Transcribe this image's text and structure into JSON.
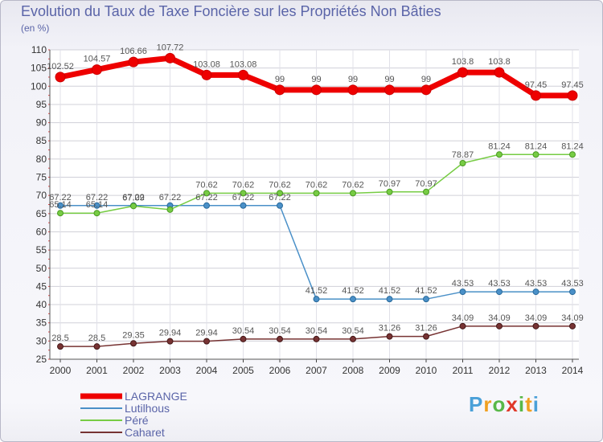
{
  "chart_data": {
    "type": "line",
    "title": "Evolution du Taux de Taxe Foncière sur les Propriétés Non Bâties",
    "ylabel": "(en %)",
    "ylim": [
      25,
      110
    ],
    "yticks": [
      "25",
      "30",
      "35",
      "40",
      "45",
      "50",
      "55",
      "60",
      "65",
      "70",
      "75",
      "80",
      "85",
      "90",
      "95",
      "100",
      "105",
      "110"
    ],
    "categories": [
      "2000",
      "2001",
      "2002",
      "2003",
      "2004",
      "2005",
      "2006",
      "2007",
      "2008",
      "2009",
      "2010",
      "2011",
      "2012",
      "2013",
      "2014"
    ],
    "series": [
      {
        "name": "LAGRANGE",
        "color": "#ee0000",
        "values": [
          102.52,
          104.57,
          106.66,
          107.72,
          103.08,
          103.08,
          99,
          99,
          99,
          99,
          99,
          103.8,
          103.8,
          97.45,
          97.45
        ],
        "labels": [
          "102.52",
          "104.57",
          "106.66",
          "107.72",
          "103.08",
          "103.08",
          "99",
          "99",
          "99",
          "99",
          "99",
          "103.8",
          "103.8",
          "97.45",
          "97.45"
        ]
      },
      {
        "name": "Lutilhous",
        "color": "#4a90c8",
        "values": [
          67.22,
          67.22,
          67.22,
          67.22,
          67.22,
          67.22,
          67.22,
          41.52,
          41.52,
          41.52,
          41.52,
          43.53,
          43.53,
          43.53,
          43.53
        ],
        "labels": [
          "67.22",
          "67.22",
          "67.22",
          "67.22",
          "67.22",
          "67.22",
          "67.22",
          "41.52",
          "41.52",
          "41.52",
          "41.52",
          "43.53",
          "43.53",
          "43.53",
          "43.53"
        ]
      },
      {
        "name": "Péré",
        "color": "#77cc44",
        "values": [
          65.14,
          65.14,
          67.09,
          66.1,
          70.62,
          70.62,
          70.62,
          70.62,
          70.62,
          70.97,
          70.97,
          78.87,
          81.24,
          81.24,
          81.24
        ],
        "labels": [
          "65.14",
          "65.14",
          "67.09",
          "",
          "70.62",
          "70.62",
          "70.62",
          "70.62",
          "70.62",
          "70.97",
          "70.97",
          "78.87",
          "81.24",
          "81.24",
          "81.24"
        ]
      },
      {
        "name": "Caharet",
        "color": "#773333",
        "values": [
          28.5,
          28.5,
          29.35,
          29.94,
          29.94,
          30.54,
          30.54,
          30.54,
          30.54,
          31.26,
          31.26,
          34.09,
          34.09,
          34.09,
          34.09
        ],
        "labels": [
          "28.5",
          "28.5",
          "29.35",
          "29.94",
          "29.94",
          "30.54",
          "30.54",
          "30.54",
          "30.54",
          "31.26",
          "31.26",
          "34.09",
          "34.09",
          "34.09",
          "34.09"
        ]
      }
    ]
  },
  "logo": {
    "text": "Proxiti"
  }
}
